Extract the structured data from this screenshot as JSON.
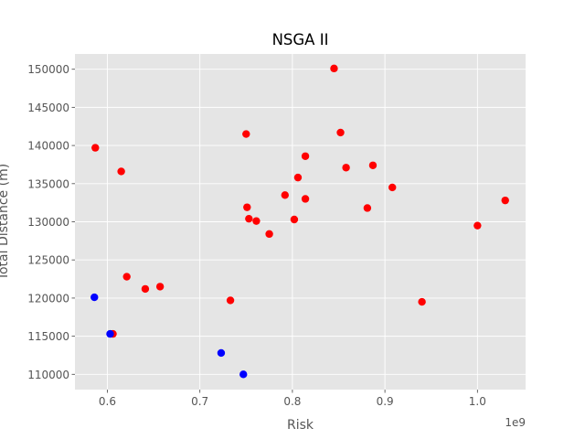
{
  "chart_data": {
    "type": "scatter",
    "title": "NSGA II",
    "xlabel": "Risk",
    "ylabel": "Total Distance (m)",
    "x_offset_label": "1e9",
    "xlim": [
      0.565,
      1.052
    ],
    "ylim": [
      108000,
      152000
    ],
    "x_ticks": [
      0.6,
      0.7,
      0.8,
      0.9,
      1.0
    ],
    "x_tick_labels": [
      "0.6",
      "0.7",
      "0.8",
      "0.9",
      "1.0"
    ],
    "y_ticks": [
      110000,
      115000,
      120000,
      125000,
      130000,
      135000,
      140000,
      145000,
      150000
    ],
    "y_tick_labels": [
      "110000",
      "115000",
      "120000",
      "125000",
      "130000",
      "135000",
      "140000",
      "145000",
      "150000"
    ],
    "grid": true,
    "colors": {
      "background": "#e5e5e5",
      "grid": "#ffffff",
      "red": "#ff0000",
      "blue": "#0000ff"
    },
    "series": [
      {
        "name": "red",
        "color": "#ff0000",
        "points": [
          [
            0.587,
            139700
          ],
          [
            0.606,
            115300
          ],
          [
            0.615,
            136600
          ],
          [
            0.621,
            122800
          ],
          [
            0.641,
            121200
          ],
          [
            0.657,
            121500
          ],
          [
            0.733,
            119700
          ],
          [
            0.75,
            141500
          ],
          [
            0.751,
            131900
          ],
          [
            0.753,
            130400
          ],
          [
            0.761,
            130100
          ],
          [
            0.775,
            128400
          ],
          [
            0.792,
            133500
          ],
          [
            0.802,
            130300
          ],
          [
            0.806,
            135800
          ],
          [
            0.814,
            138600
          ],
          [
            0.814,
            133000
          ],
          [
            0.845,
            150100
          ],
          [
            0.852,
            141700
          ],
          [
            0.858,
            137100
          ],
          [
            0.881,
            131800
          ],
          [
            0.887,
            137400
          ],
          [
            0.908,
            134500
          ],
          [
            0.94,
            119500
          ],
          [
            1.0,
            129500
          ],
          [
            1.03,
            132800
          ]
        ]
      },
      {
        "name": "blue",
        "color": "#0000ff",
        "points": [
          [
            0.586,
            120100
          ],
          [
            0.603,
            115300
          ],
          [
            0.723,
            112800
          ],
          [
            0.747,
            110000
          ]
        ]
      }
    ]
  }
}
